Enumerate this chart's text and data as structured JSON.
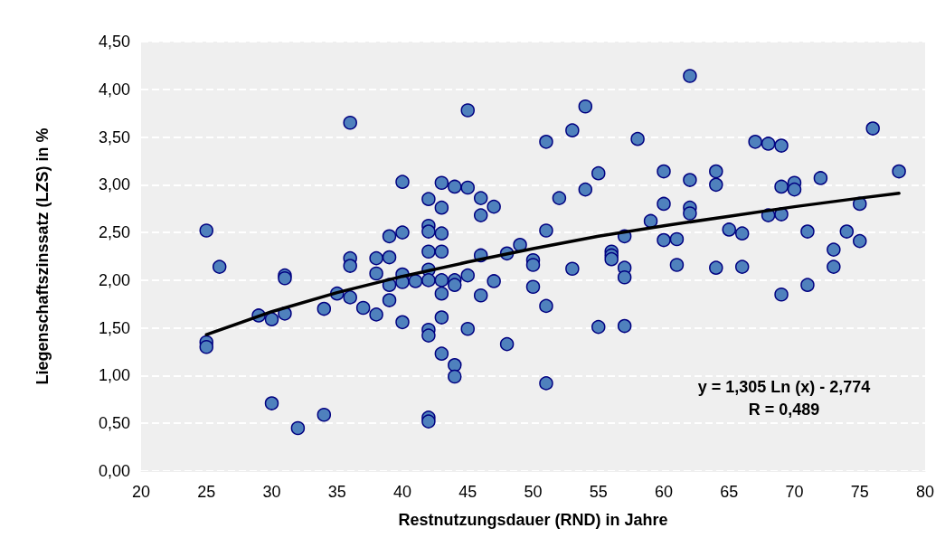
{
  "chart_data": {
    "type": "scatter",
    "xlabel": "Restnutzungsdauer (RND) in Jahre",
    "ylabel": "Liegenschaftszinssatz (LZS) in %",
    "xlim": [
      20,
      80
    ],
    "xticks": [
      20,
      25,
      30,
      35,
      40,
      45,
      50,
      55,
      60,
      65,
      70,
      75,
      80
    ],
    "ylim": [
      0,
      4.5
    ],
    "yticks": [
      {
        "value": 0,
        "label": "0,00"
      },
      {
        "value": 0.5,
        "label": "0,50"
      },
      {
        "value": 1,
        "label": "1,00"
      },
      {
        "value": 1.5,
        "label": "1,50"
      },
      {
        "value": 2,
        "label": "2,00"
      },
      {
        "value": 2.5,
        "label": "2,50"
      },
      {
        "value": 3,
        "label": "3,00"
      },
      {
        "value": 3.5,
        "label": "3,50"
      },
      {
        "value": 4,
        "label": "4,00"
      },
      {
        "value": 4.5,
        "label": "4,50"
      }
    ],
    "grid": "y",
    "annotations": [
      "y = 1,305 Ln (x) - 2,774",
      "R = 0,489"
    ],
    "series": [
      {
        "color": "#4f81bd",
        "marker": "circle",
        "x": [
          25,
          25,
          25,
          26,
          29,
          30,
          30,
          31,
          31,
          31,
          32,
          34,
          34,
          35,
          36,
          36,
          36,
          36,
          37,
          38,
          38,
          38,
          39,
          39,
          39,
          39,
          40,
          40,
          40,
          40,
          40,
          41,
          42,
          42,
          42,
          42,
          42,
          42,
          42,
          42,
          42,
          42,
          43,
          43,
          43,
          43,
          43,
          43,
          43,
          43,
          44,
          44,
          44,
          44,
          44,
          45,
          45,
          45,
          45,
          46,
          46,
          46,
          46,
          47,
          47,
          48,
          48,
          49,
          50,
          50,
          50,
          51,
          51,
          51,
          51,
          52,
          53,
          53,
          54,
          54,
          55,
          55,
          56,
          56,
          56,
          57,
          57,
          57,
          57,
          58,
          59,
          60,
          60,
          60,
          61,
          61,
          62,
          62,
          62,
          62,
          64,
          64,
          64,
          65,
          66,
          66,
          67,
          68,
          68,
          69,
          69,
          69,
          69,
          70,
          70,
          71,
          71,
          72,
          73,
          73,
          74,
          75,
          75,
          76,
          78
        ],
        "values": [
          2.52,
          1.35,
          1.3,
          2.14,
          1.63,
          1.59,
          0.71,
          2.05,
          2.02,
          1.65,
          0.45,
          1.7,
          0.59,
          1.86,
          3.65,
          2.23,
          2.15,
          1.82,
          1.71,
          2.23,
          2.07,
          1.64,
          2.46,
          2.24,
          1.95,
          1.79,
          3.03,
          2.5,
          2.06,
          1.98,
          1.56,
          1.99,
          2.85,
          2.57,
          2.51,
          2.3,
          2.11,
          2.0,
          1.48,
          1.42,
          0.56,
          0.52,
          3.02,
          2.76,
          2.49,
          2.3,
          2.0,
          1.86,
          1.61,
          1.23,
          2.98,
          2.0,
          1.95,
          1.11,
          0.99,
          3.78,
          2.97,
          2.05,
          1.49,
          2.86,
          2.68,
          2.26,
          1.84,
          2.77,
          1.99,
          2.28,
          1.33,
          2.37,
          2.21,
          2.16,
          1.93,
          3.45,
          2.52,
          1.73,
          0.92,
          2.86,
          3.57,
          2.12,
          3.82,
          2.95,
          3.12,
          1.51,
          2.3,
          2.26,
          2.22,
          2.46,
          2.13,
          2.03,
          1.52,
          3.48,
          2.62,
          3.14,
          2.8,
          2.42,
          2.43,
          2.16,
          4.14,
          3.05,
          2.76,
          2.7,
          3.14,
          3.0,
          2.13,
          2.53,
          2.49,
          2.14,
          3.45,
          3.43,
          2.68,
          3.41,
          2.98,
          2.69,
          1.85,
          3.02,
          2.95,
          2.51,
          1.95,
          3.07,
          2.32,
          2.14,
          2.51,
          2.8,
          2.41,
          3.59,
          3.14
        ]
      },
      {
        "type": "line",
        "color": "#000000",
        "marker": "none",
        "line_style": "solid",
        "x": [
          25,
          30,
          35,
          40,
          45,
          50,
          55,
          60,
          65,
          70,
          75,
          78
        ],
        "values": [
          1.43,
          1.67,
          1.87,
          2.04,
          2.19,
          2.33,
          2.46,
          2.57,
          2.67,
          2.77,
          2.86,
          2.91
        ]
      }
    ]
  }
}
